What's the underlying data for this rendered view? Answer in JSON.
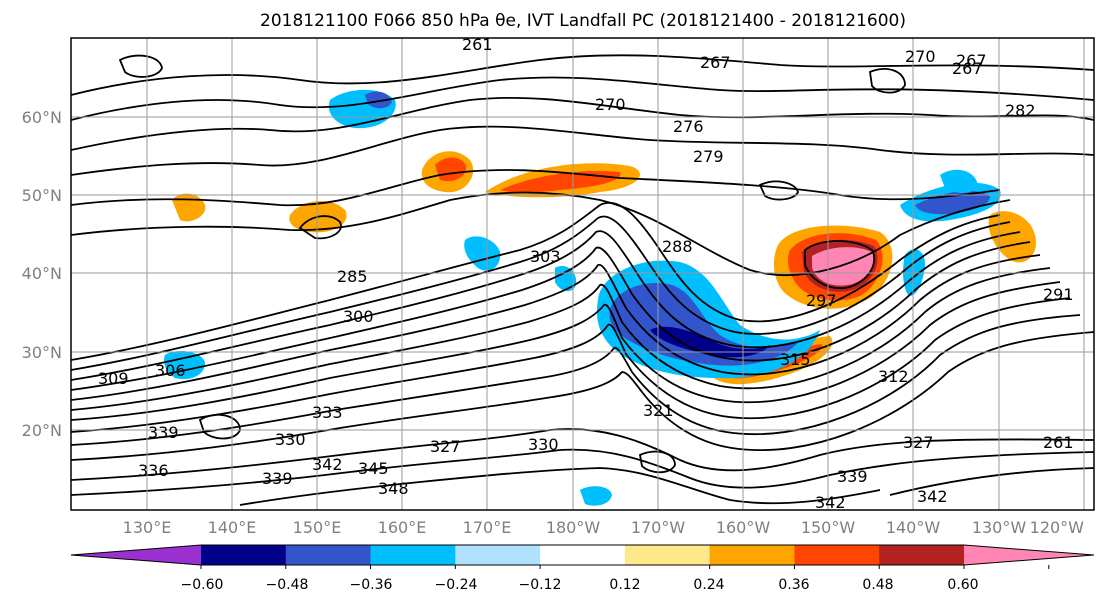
{
  "title": "2018121100 F066 850 hPa θe, IVT Landfall PC (2018121400 - 2018121600)",
  "lat_labels": [
    "60°N",
    "50°N",
    "40°N",
    "30°N",
    "20°N"
  ],
  "lon_labels": [
    "130°E",
    "140°E",
    "150°E",
    "160°E",
    "170°E",
    "180°W",
    "170°W",
    "160°W",
    "150°W",
    "140°W",
    "130°W",
    "120°W"
  ],
  "colorbar": {
    "colors": [
      "#9b30d0",
      "#00008b",
      "#3355cc",
      "#00bfff",
      "#b0e2ff",
      "#ffffff",
      "#fde98a",
      "#ffa500",
      "#ff4500",
      "#b22222",
      "#ff85b4"
    ],
    "tick_labels": [
      "−0.60",
      "−0.48",
      "−0.36",
      "−0.24",
      "−0.12",
      "0.12",
      "0.24",
      "0.36",
      "0.48",
      "0.60"
    ]
  },
  "contour_labels": [
    {
      "text": "261"
    },
    {
      "text": "267"
    },
    {
      "text": "267"
    },
    {
      "text": "270"
    },
    {
      "text": "270"
    },
    {
      "text": "276"
    },
    {
      "text": "279"
    },
    {
      "text": "282"
    },
    {
      "text": "285"
    },
    {
      "text": "288"
    },
    {
      "text": "291"
    },
    {
      "text": "300"
    },
    {
      "text": "303"
    },
    {
      "text": "306"
    },
    {
      "text": "309"
    },
    {
      "text": "312"
    },
    {
      "text": "315"
    },
    {
      "text": "321"
    },
    {
      "text": "327"
    },
    {
      "text": "327"
    },
    {
      "text": "330"
    },
    {
      "text": "330"
    },
    {
      "text": "333"
    },
    {
      "text": "336"
    },
    {
      "text": "339"
    },
    {
      "text": "339"
    },
    {
      "text": "339"
    },
    {
      "text": "342"
    },
    {
      "text": "342"
    },
    {
      "text": "342"
    },
    {
      "text": "345"
    },
    {
      "text": "348"
    },
    {
      "text": "261"
    },
    {
      "text": "267"
    },
    {
      "text": "297"
    }
  ]
}
